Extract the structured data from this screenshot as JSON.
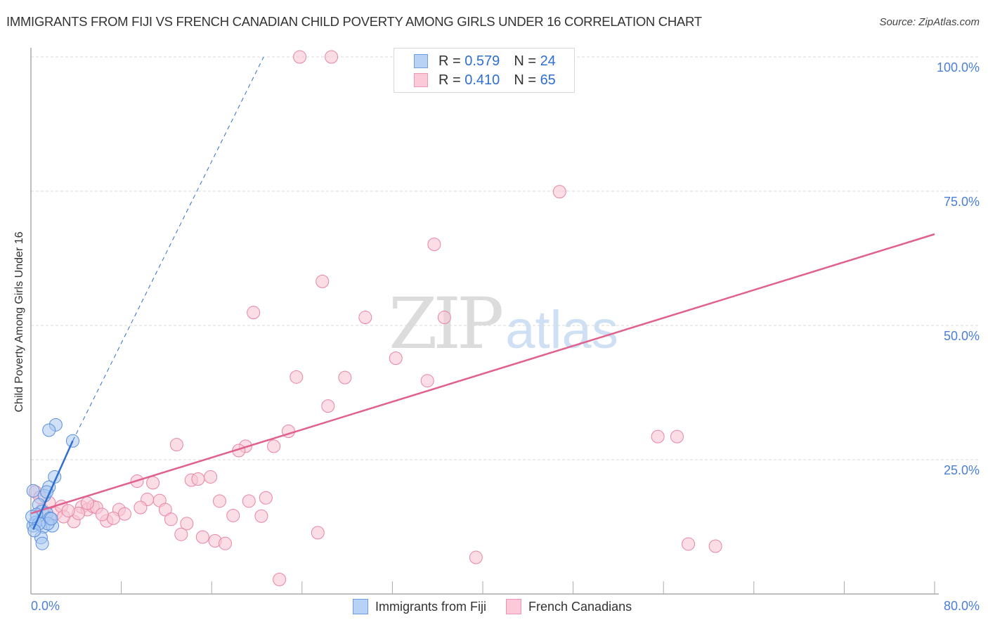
{
  "header": {
    "title": "IMMIGRANTS FROM FIJI VS FRENCH CANADIAN CHILD POVERTY AMONG GIRLS UNDER 16 CORRELATION CHART",
    "source": "Source: ZipAtlas.com"
  },
  "watermark": {
    "zip": "ZIP",
    "atlas": "atlas"
  },
  "axes": {
    "ylabel": "Child Poverty Among Girls Under 16",
    "y_ticks": [
      "100.0%",
      "75.0%",
      "50.0%",
      "25.0%"
    ],
    "x_min_label": "0.0%",
    "x_max_label": "80.0%"
  },
  "legend_top": {
    "rows": [
      {
        "r_label": "R = ",
        "r_value": "0.579",
        "n_label": "N = ",
        "n_value": "24"
      },
      {
        "r_label": "R = ",
        "r_value": "0.410",
        "n_label": "N = ",
        "n_value": "65"
      }
    ]
  },
  "legend_bottom": {
    "items": [
      {
        "label": "Immigrants from Fiji"
      },
      {
        "label": "French Canadians"
      }
    ]
  },
  "colors": {
    "fiji_fill": "#a9c8f0",
    "fiji_stroke": "#5b8fdc",
    "fiji_line": "#2f6fd0",
    "french_fill": "#f9c6d6",
    "french_stroke": "#e884a6",
    "french_line": "#e0608e",
    "grid": "#d9d9d9",
    "tick_label": "#4a7fd4"
  },
  "chart_data": {
    "type": "scatter",
    "title": "IMMIGRANTS FROM FIJI VS FRENCH CANADIAN CHILD POVERTY AMONG GIRLS UNDER 16 CORRELATION CHART",
    "xlabel": "",
    "ylabel": "Child Poverty Among Girls Under 16",
    "xlim": [
      0,
      80
    ],
    "ylim": [
      0,
      100
    ],
    "grid": true,
    "legend_position": "bottom",
    "series": [
      {
        "name": "Immigrants from Fiji",
        "R": 0.579,
        "N": 24,
        "points": [
          [
            2.2,
            31.5
          ],
          [
            1.6,
            30.5
          ],
          [
            3.7,
            28.5
          ],
          [
            2.1,
            21.8
          ],
          [
            1.6,
            19.9
          ],
          [
            1.2,
            18.3
          ],
          [
            1.4,
            19.0
          ],
          [
            0.2,
            19.2
          ],
          [
            0.7,
            16.6
          ],
          [
            1.0,
            15.4
          ],
          [
            1.4,
            15.0
          ],
          [
            0.5,
            14.8
          ],
          [
            1.7,
            14.1
          ],
          [
            0.2,
            12.7
          ],
          [
            1.1,
            12.5
          ],
          [
            1.9,
            12.7
          ],
          [
            0.4,
            13.3
          ],
          [
            1.5,
            13.1
          ],
          [
            0.9,
            10.5
          ],
          [
            1.0,
            9.4
          ],
          [
            1.8,
            14.0
          ],
          [
            0.7,
            13.1
          ],
          [
            0.1,
            14.4
          ],
          [
            0.3,
            11.8
          ]
        ],
        "trendline": {
          "x": [
            0.2,
            3.7
          ],
          "y": [
            12.0,
            28.5
          ],
          "dashed_extension_to": [
            20.6,
            100
          ]
        }
      },
      {
        "name": "French Canadians",
        "R": 0.41,
        "N": 65,
        "points": [
          [
            23.8,
            100
          ],
          [
            26.6,
            100
          ],
          [
            46.8,
            74.9
          ],
          [
            35.7,
            65.1
          ],
          [
            25.8,
            58.2
          ],
          [
            19.7,
            52.4
          ],
          [
            29.6,
            51.5
          ],
          [
            36.6,
            51.5
          ],
          [
            32.3,
            43.9
          ],
          [
            23.5,
            40.4
          ],
          [
            27.8,
            40.3
          ],
          [
            35.1,
            39.7
          ],
          [
            26.3,
            35.0
          ],
          [
            22.8,
            30.3
          ],
          [
            55.5,
            29.3
          ],
          [
            57.2,
            29.3
          ],
          [
            12.9,
            27.8
          ],
          [
            19.0,
            27.5
          ],
          [
            18.4,
            26.7
          ],
          [
            21.5,
            27.5
          ],
          [
            9.4,
            21.0
          ],
          [
            10.8,
            20.7
          ],
          [
            15.9,
            21.8
          ],
          [
            14.2,
            21.2
          ],
          [
            14.8,
            21.4
          ],
          [
            10.3,
            17.6
          ],
          [
            11.4,
            17.4
          ],
          [
            16.7,
            17.3
          ],
          [
            19.3,
            17.3
          ],
          [
            20.8,
            17.9
          ],
          [
            4.5,
            16.2
          ],
          [
            5.0,
            15.7
          ],
          [
            5.5,
            16.3
          ],
          [
            5.8,
            16.1
          ],
          [
            5.0,
            16.9
          ],
          [
            7.8,
            15.7
          ],
          [
            9.7,
            16.1
          ],
          [
            11.9,
            15.7
          ],
          [
            6.7,
            13.6
          ],
          [
            7.3,
            14.1
          ],
          [
            6.3,
            14.8
          ],
          [
            8.3,
            14.9
          ],
          [
            12.4,
            13.9
          ],
          [
            13.8,
            13.1
          ],
          [
            13.3,
            11.1
          ],
          [
            15.2,
            10.6
          ],
          [
            16.3,
            9.9
          ],
          [
            17.2,
            9.4
          ],
          [
            17.9,
            14.6
          ],
          [
            20.4,
            14.5
          ],
          [
            25.4,
            11.4
          ],
          [
            22.0,
            2.7
          ],
          [
            39.4,
            6.8
          ],
          [
            58.2,
            9.3
          ],
          [
            60.6,
            8.9
          ],
          [
            3.8,
            13.5
          ],
          [
            2.2,
            15.0
          ],
          [
            1.0,
            15.7
          ],
          [
            1.6,
            17.0
          ],
          [
            0.4,
            19.0
          ],
          [
            2.7,
            16.3
          ],
          [
            4.2,
            15.0
          ],
          [
            2.9,
            14.4
          ],
          [
            3.3,
            15.5
          ],
          [
            0.8,
            18.0
          ]
        ],
        "trendline": {
          "x": [
            0,
            80
          ],
          "y": [
            15.0,
            67.0
          ]
        }
      }
    ]
  }
}
